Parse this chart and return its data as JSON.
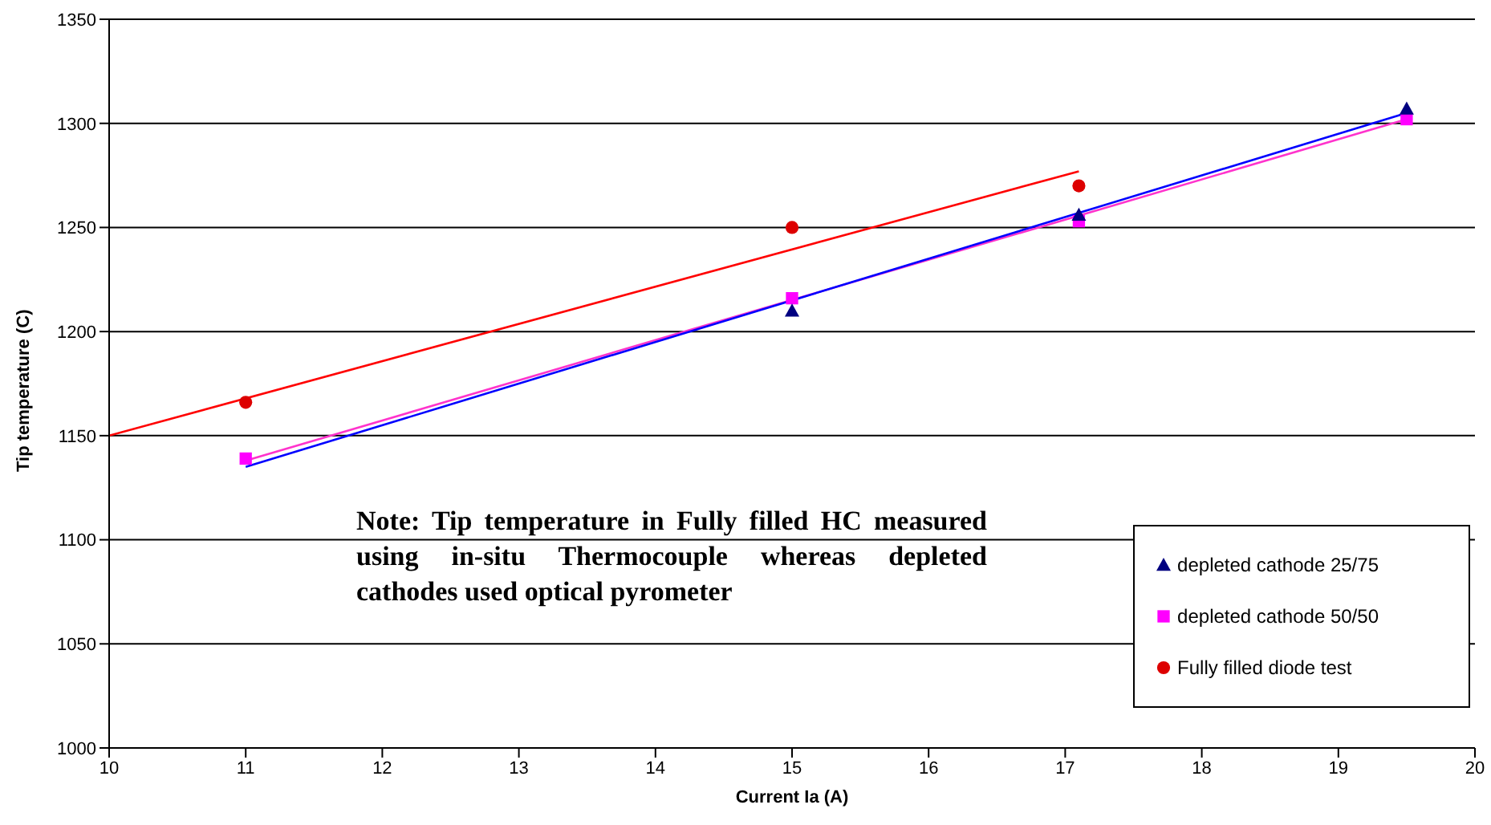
{
  "chart_data": {
    "type": "scatter",
    "xlabel": "Current Ia (A)",
    "ylabel": "Tip temperature (C)",
    "xlim": [
      10,
      20
    ],
    "xticks": [
      10,
      11,
      12,
      13,
      14,
      15,
      16,
      17,
      18,
      19,
      20
    ],
    "ylim": [
      1000,
      1350
    ],
    "yticks": [
      1000,
      1050,
      1100,
      1150,
      1200,
      1250,
      1300,
      1350
    ],
    "grid": "y",
    "legend": "bottom right",
    "series": [
      {
        "name": "depleted cathode 25/75",
        "marker": "triangle",
        "color": "#000080",
        "x": [
          15,
          17.1,
          19.5
        ],
        "values": [
          1210,
          1256,
          1307
        ]
      },
      {
        "name": "depleted cathode 50/50",
        "marker": "square",
        "color": "#ff00ff",
        "x": [
          11,
          15,
          17.1,
          19.5
        ],
        "values": [
          1139,
          1216,
          1253,
          1302
        ]
      },
      {
        "name": "Fully filled diode test",
        "marker": "circle",
        "color": "#dd0000",
        "x": [
          11,
          15,
          17.1
        ],
        "values": [
          1166,
          1250,
          1270
        ]
      },
      {
        "type": "line",
        "marker": "none",
        "color": "#0000ff",
        "x": [
          11,
          19.5
        ],
        "values": [
          1135,
          1305
        ]
      },
      {
        "type": "line",
        "marker": "none",
        "color": "#ff33cc",
        "x": [
          11,
          19.5
        ],
        "values": [
          1138,
          1302
        ]
      },
      {
        "type": "line",
        "marker": "none",
        "color": "#ff0000",
        "x": [
          10,
          17.1
        ],
        "values": [
          1150,
          1277
        ]
      }
    ],
    "annotations": [
      "Note: Tip temperature in Fully filled HC measured using in-situ Thermocouple whereas depleted cathodes used optical pyrometer"
    ]
  }
}
